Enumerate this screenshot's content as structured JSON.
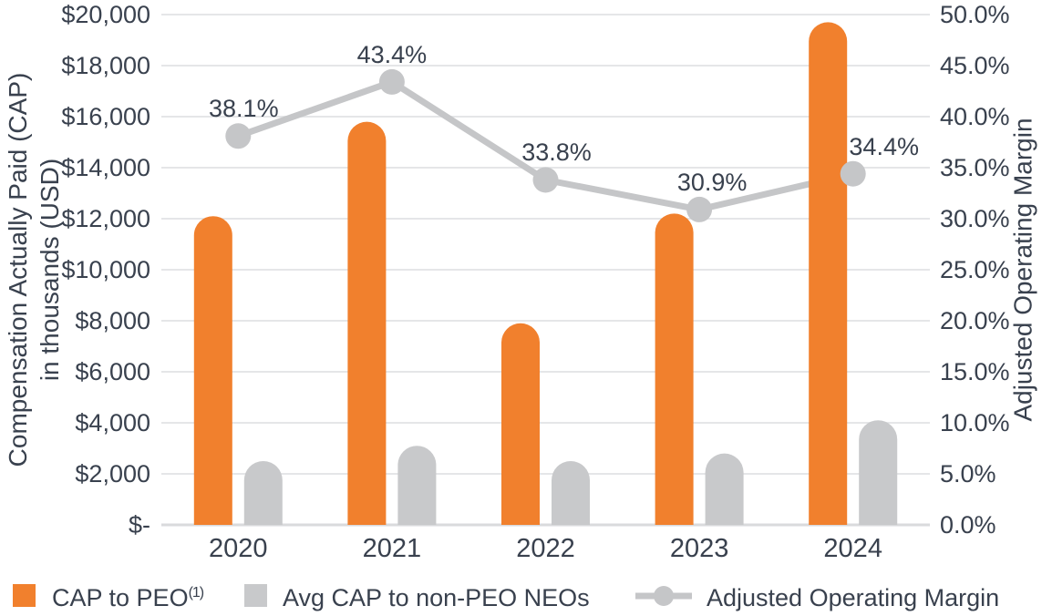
{
  "colors": {
    "bar_orange": "#F1802D",
    "bar_gray": "#C8C9CB",
    "line_gray": "#C5C6C8",
    "text_navy": "#39414E",
    "gridline": "#E5E6E8",
    "axis_line": "#D9DADC"
  },
  "legend": {
    "items": [
      {
        "label": "CAP to PEO",
        "sup": "(1)",
        "swatch": "orange-square"
      },
      {
        "label": "Avg CAP to non-PEO NEOs",
        "sup": "",
        "swatch": "gray-square"
      },
      {
        "label": "Adjusted Operating Margin",
        "sup": "",
        "swatch": "gray-line-with-dot"
      }
    ]
  },
  "chart_data": {
    "type": "bar",
    "subtype": "combo-bar-line-dual-axis",
    "categories": [
      "2020",
      "2021",
      "2022",
      "2023",
      "2024"
    ],
    "series": [
      {
        "name": "CAP to PEO(1)",
        "type": "bar",
        "axis": "left",
        "color": "#F1802D",
        "values": [
          12100,
          15800,
          7900,
          12200,
          19700
        ]
      },
      {
        "name": "Avg CAP to non-PEO NEOs",
        "type": "bar",
        "axis": "left",
        "color": "#C8C9CB",
        "values": [
          2500,
          3100,
          2500,
          2800,
          4100
        ]
      },
      {
        "name": "Adjusted Operating Margin",
        "type": "line",
        "axis": "right",
        "color": "#C5C6C8",
        "values": [
          38.1,
          43.4,
          33.8,
          30.9,
          34.4
        ],
        "data_labels": [
          "38.1%",
          "43.4%",
          "33.8%",
          "30.9%",
          "34.4%"
        ]
      }
    ],
    "left_axis": {
      "title_line1": "Compensation Actually Paid (CAP)",
      "title_line2": "in thousands (USD)",
      "min": 0,
      "max": 20000,
      "ticks": [
        "$20,000",
        "$18,000",
        "$16,000",
        "$14,000",
        "$12,000",
        "$10,000",
        "$8,000",
        "$6,000",
        "$4,000",
        "$2,000",
        "$-"
      ]
    },
    "right_axis": {
      "title": "Adjusted Operating Margin",
      "min": 0,
      "max": 50,
      "ticks": [
        "50.0%",
        "45.0%",
        "40.0%",
        "35.0%",
        "30.0%",
        "25.0%",
        "20.0%",
        "15.0%",
        "10.0%",
        "5.0%",
        "0.0%"
      ]
    },
    "grid": true,
    "legend_position": "bottom"
  }
}
